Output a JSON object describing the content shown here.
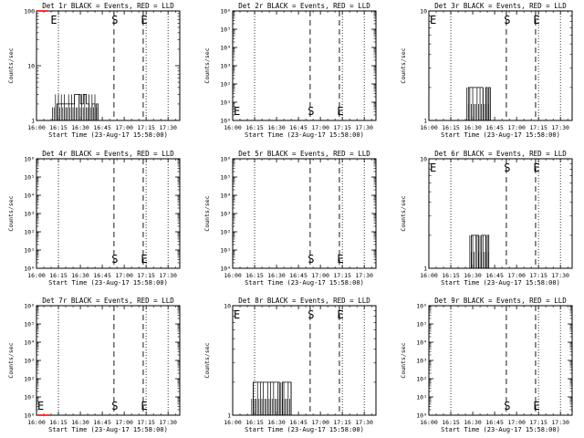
{
  "shared": {
    "xlabel": "Start Time (23-Aug-17 15:58:00)",
    "ylabel": "Counts/sec",
    "x_tick_labels": [
      "16:00",
      "16:15",
      "16:30",
      "16:45",
      "17:00",
      "17:15",
      "17:30"
    ],
    "marker_start": "S",
    "marker_end": "E"
  },
  "chart_data": [
    {
      "type": "line",
      "title": "Det 1r BLACK = Events, RED = LLD",
      "xlabel": "Start Time (23-Aug-17 15:58:00)",
      "ylabel": "Counts/sec",
      "xlim": [
        "16:00",
        "17:38"
      ],
      "ylim": [
        1,
        100
      ],
      "yscale": "log",
      "y_tick_labels": [
        "1",
        "10",
        "100"
      ],
      "marker_start": "16:53",
      "marker_end": "17:13",
      "marker_end_left": "16:10",
      "dotted_lines": [
        "16:15",
        "17:15",
        "17:30"
      ],
      "events": {
        "points": [
          [
            "16:11",
            "1"
          ],
          [
            "16:12",
            "1"
          ],
          [
            "16:14",
            "2"
          ],
          [
            "16:16",
            "2"
          ],
          [
            "16:20",
            "2"
          ],
          [
            "16:24",
            "2"
          ],
          [
            "16:26",
            "3"
          ],
          [
            "16:28",
            "3"
          ],
          [
            "16:30",
            "2"
          ],
          [
            "16:32",
            "3"
          ],
          [
            "16:34",
            "2"
          ],
          [
            "16:36",
            "1"
          ],
          [
            "16:38",
            "2"
          ],
          [
            "16:40",
            "1"
          ],
          [
            "16:41",
            "2"
          ],
          [
            "16:42",
            "1"
          ]
        ]
      },
      "lld": {
        "points": [
          [
            "16:00",
            "100"
          ],
          [
            "16:08",
            "100"
          ]
        ]
      },
      "colors": {
        "events": "#000000",
        "lld": "#ff0000"
      }
    },
    {
      "type": "line",
      "title": "Det 2r BLACK = Events, RED = LLD",
      "xlabel": "Start Time (23-Aug-17 15:58:00)",
      "ylabel": "Counts/sec",
      "xlim": [
        "16:00",
        "17:38"
      ],
      "ylim": [
        1,
        1000000
      ],
      "yscale": "log",
      "y_tick_labels": [
        "10⁰",
        "10¹",
        "10²",
        "10³",
        "10⁴",
        "10⁵",
        "10⁶"
      ],
      "marker_start": "16:53",
      "marker_end": "17:13",
      "marker_end_left": "16:01",
      "dotted_lines": [
        "16:15",
        "17:15",
        "17:30"
      ],
      "events": {
        "points": []
      },
      "lld": {
        "points": []
      },
      "colors": {
        "events": "#000000",
        "lld": "#ff0000"
      }
    },
    {
      "type": "line",
      "title": "Det 3r BLACK = Events, RED = LLD",
      "xlabel": "Start Time (23-Aug-17 15:58:00)",
      "ylabel": "Counts/sec",
      "xlim": [
        "16:00",
        "17:38"
      ],
      "ylim": [
        1,
        10
      ],
      "yscale": "log",
      "y_tick_labels": [
        "1",
        "10"
      ],
      "marker_start": "16:53",
      "marker_end": "17:13",
      "marker_end_left": "16:01",
      "dotted_lines": [
        "16:15",
        "17:15",
        "17:30"
      ],
      "events": {
        "points": [
          [
            "16:26",
            "1"
          ],
          [
            "16:27",
            "2"
          ],
          [
            "16:29",
            "2"
          ],
          [
            "16:31",
            "2"
          ],
          [
            "16:33",
            "2"
          ],
          [
            "16:35",
            "2"
          ],
          [
            "16:37",
            "1"
          ],
          [
            "16:39",
            "2"
          ],
          [
            "16:40",
            "1"
          ],
          [
            "16:41",
            "2"
          ],
          [
            "16:42",
            "1"
          ]
        ]
      },
      "lld": {
        "points": []
      },
      "colors": {
        "events": "#000000",
        "lld": "#ff0000"
      }
    },
    {
      "type": "line",
      "title": "Det 4r BLACK = Events, RED = LLD",
      "xlabel": "Start Time (23-Aug-17 15:58:00)",
      "ylabel": "Counts/sec",
      "xlim": [
        "16:00",
        "17:38"
      ],
      "ylim": [
        1,
        1000000
      ],
      "yscale": "log",
      "y_tick_labels": [
        "10⁰",
        "10¹",
        "10²",
        "10³",
        "10⁴",
        "10⁵",
        "10⁶"
      ],
      "marker_start": "16:53",
      "marker_end": "17:13",
      "marker_end_left": "",
      "dotted_lines": [
        "16:15",
        "17:15",
        "17:30"
      ],
      "events": {
        "points": []
      },
      "lld": {
        "points": []
      },
      "colors": {
        "events": "#000000",
        "lld": "#ff0000"
      }
    },
    {
      "type": "line",
      "title": "Det 5r BLACK = Events, RED = LLD",
      "xlabel": "Start Time (23-Aug-17 15:58:00)",
      "ylabel": "Counts/sec",
      "xlim": [
        "16:00",
        "17:38"
      ],
      "ylim": [
        1,
        1000000
      ],
      "yscale": "log",
      "y_tick_labels": [
        "10⁰",
        "10¹",
        "10²",
        "10³",
        "10⁴",
        "10⁵",
        "10⁶"
      ],
      "marker_start": "16:53",
      "marker_end": "17:13",
      "marker_end_left": "",
      "dotted_lines": [
        "16:15",
        "17:15",
        "17:30"
      ],
      "events": {
        "points": []
      },
      "lld": {
        "points": []
      },
      "colors": {
        "events": "#000000",
        "lld": "#ff0000"
      }
    },
    {
      "type": "line",
      "title": "Det 6r BLACK = Events, RED = LLD",
      "xlabel": "Start Time (23-Aug-17 15:58:00)",
      "ylabel": "Counts/sec",
      "xlim": [
        "16:00",
        "17:38"
      ],
      "ylim": [
        1,
        10
      ],
      "yscale": "log",
      "y_tick_labels": [
        "1",
        "10"
      ],
      "marker_start": "16:53",
      "marker_end": "17:13",
      "marker_end_left": "16:01",
      "dotted_lines": [
        "16:15",
        "17:15",
        "17:30"
      ],
      "events": {
        "points": [
          [
            "16:28",
            "1"
          ],
          [
            "16:29",
            "2"
          ],
          [
            "16:31",
            "2"
          ],
          [
            "16:33",
            "2"
          ],
          [
            "16:34",
            "1"
          ],
          [
            "16:36",
            "2"
          ],
          [
            "16:38",
            "2"
          ],
          [
            "16:39",
            "1"
          ],
          [
            "16:40",
            "2"
          ],
          [
            "16:41",
            "1"
          ]
        ]
      },
      "lld": {
        "points": []
      },
      "colors": {
        "events": "#000000",
        "lld": "#ff0000"
      }
    },
    {
      "type": "line",
      "title": "Det 7r BLACK = Events, RED = LLD",
      "xlabel": "Start Time (23-Aug-17 15:58:00)",
      "ylabel": "Counts/sec",
      "xlim": [
        "16:00",
        "17:38"
      ],
      "ylim": [
        1,
        1000000
      ],
      "yscale": "log",
      "y_tick_labels": [
        "10⁰",
        "10¹",
        "10²",
        "10³",
        "10⁴",
        "10⁵",
        "10⁶"
      ],
      "marker_start": "16:53",
      "marker_end": "17:13",
      "marker_end_left": "16:01",
      "dotted_lines": [
        "16:15",
        "17:15",
        "17:30"
      ],
      "events": {
        "points": []
      },
      "lld": {
        "points": [
          [
            "16:01",
            "1"
          ],
          [
            "16:09",
            "1"
          ]
        ]
      },
      "colors": {
        "events": "#000000",
        "lld": "#ff0000"
      }
    },
    {
      "type": "line",
      "title": "Det 8r BLACK = Events, RED = LLD",
      "xlabel": "Start Time (23-Aug-17 15:58:00)",
      "ylabel": "Counts/sec",
      "xlim": [
        "16:00",
        "17:38"
      ],
      "ylim": [
        1,
        10
      ],
      "yscale": "log",
      "y_tick_labels": [
        "1",
        "10"
      ],
      "marker_start": "16:53",
      "marker_end": "17:13",
      "marker_end_left": "16:01",
      "dotted_lines": [
        "16:15",
        "17:15",
        "17:30"
      ],
      "events": {
        "points": [
          [
            "16:13",
            "1"
          ],
          [
            "16:14",
            "2"
          ],
          [
            "16:16",
            "2"
          ],
          [
            "16:20",
            "2"
          ],
          [
            "16:24",
            "2"
          ],
          [
            "16:26",
            "2"
          ],
          [
            "16:28",
            "2"
          ],
          [
            "16:30",
            "2"
          ],
          [
            "16:32",
            "1"
          ],
          [
            "16:34",
            "2"
          ],
          [
            "16:36",
            "2"
          ],
          [
            "16:38",
            "2"
          ],
          [
            "16:40",
            "1"
          ]
        ]
      },
      "lld": {
        "points": []
      },
      "colors": {
        "events": "#000000",
        "lld": "#ff0000"
      }
    },
    {
      "type": "line",
      "title": "Det 9r BLACK = Events, RED = LLD",
      "xlabel": "Start Time (23-Aug-17 15:58:00)",
      "ylabel": "Counts/sec",
      "xlim": [
        "16:00",
        "17:38"
      ],
      "ylim": [
        1,
        1000000
      ],
      "yscale": "log",
      "y_tick_labels": [
        "10⁰",
        "10¹",
        "10²",
        "10³",
        "10⁴",
        "10⁵",
        "10⁶"
      ],
      "marker_start": "16:53",
      "marker_end": "17:13",
      "marker_end_left": "",
      "dotted_lines": [
        "16:15",
        "17:15",
        "17:30"
      ],
      "events": {
        "points": []
      },
      "lld": {
        "points": []
      },
      "colors": {
        "events": "#000000",
        "lld": "#ff0000"
      }
    }
  ]
}
